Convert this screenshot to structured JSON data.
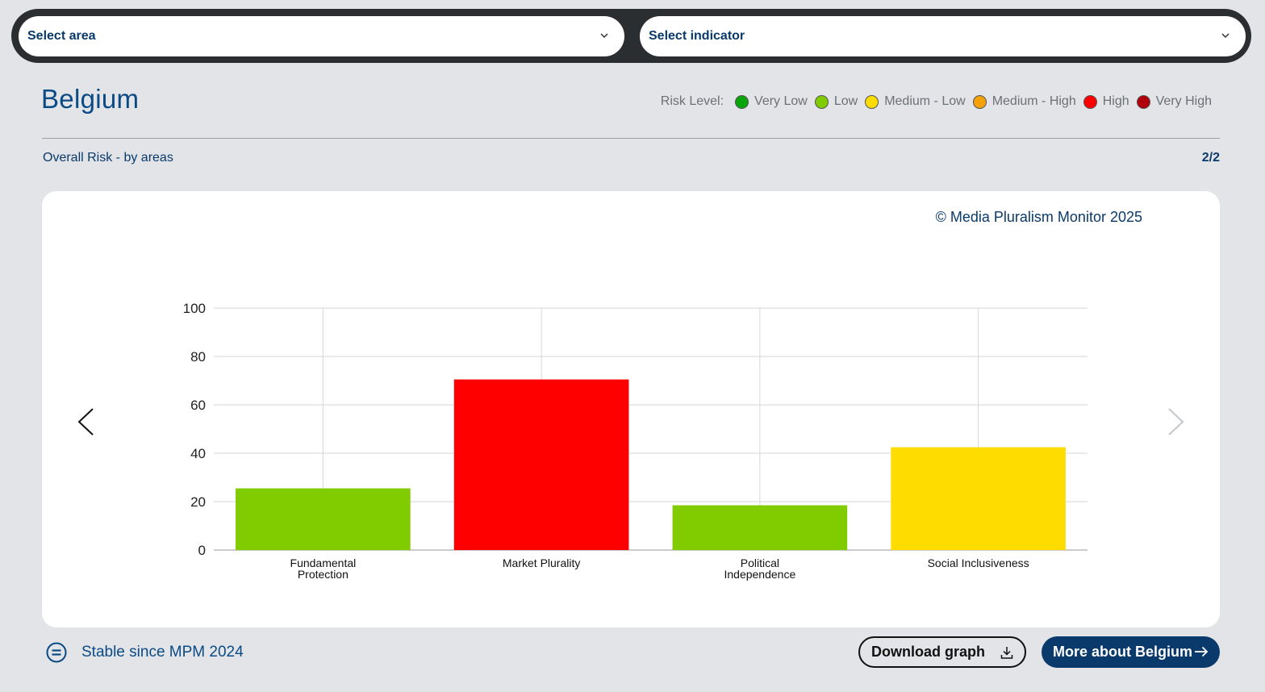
{
  "filters": {
    "area_label": "Select area",
    "indicator_label": "Select indicator"
  },
  "country": "Belgium",
  "risk_legend": {
    "title": "Risk Level:",
    "levels": [
      {
        "label": "Very Low",
        "color": "#0aa50a"
      },
      {
        "label": "Low",
        "color": "#80cc00"
      },
      {
        "label": "Medium - Low",
        "color": "#ffdc00"
      },
      {
        "label": "Medium - High",
        "color": "#f5a20a"
      },
      {
        "label": "High",
        "color": "#ff0000"
      },
      {
        "label": "Very High",
        "color": "#b0000a"
      }
    ]
  },
  "view": {
    "subtitle": "Overall Risk - by areas",
    "pager": "2/2"
  },
  "card": {
    "copyright": "© Media Pluralism Monitor 2025"
  },
  "chart_data": {
    "type": "bar",
    "categories": [
      [
        "Fundamental",
        "Protection"
      ],
      [
        "Market Plurality"
      ],
      [
        "Political",
        "Independence"
      ],
      [
        "Social Inclusiveness"
      ]
    ],
    "values": [
      25.5,
      70.5,
      18.5,
      42.5
    ],
    "colors": [
      "#80cc00",
      "#ff0000",
      "#80cc00",
      "#ffdc00"
    ],
    "ylim": [
      0,
      100
    ],
    "yticks": [
      0,
      20,
      40,
      60,
      80,
      100
    ],
    "grid": true,
    "title": "",
    "xlabel": "",
    "ylabel": ""
  },
  "footer": {
    "status": "Stable since MPM 2024",
    "download_label": "Download graph",
    "more_label": "More about Belgium"
  },
  "icons": {
    "select_area": "chevron-down-icon",
    "select_indicator": "chevron-down-icon",
    "prev": "chevron-left-icon",
    "next": "chevron-right-icon",
    "status": "equals-circle-icon",
    "download": "download-icon",
    "more": "arrow-right-icon"
  }
}
